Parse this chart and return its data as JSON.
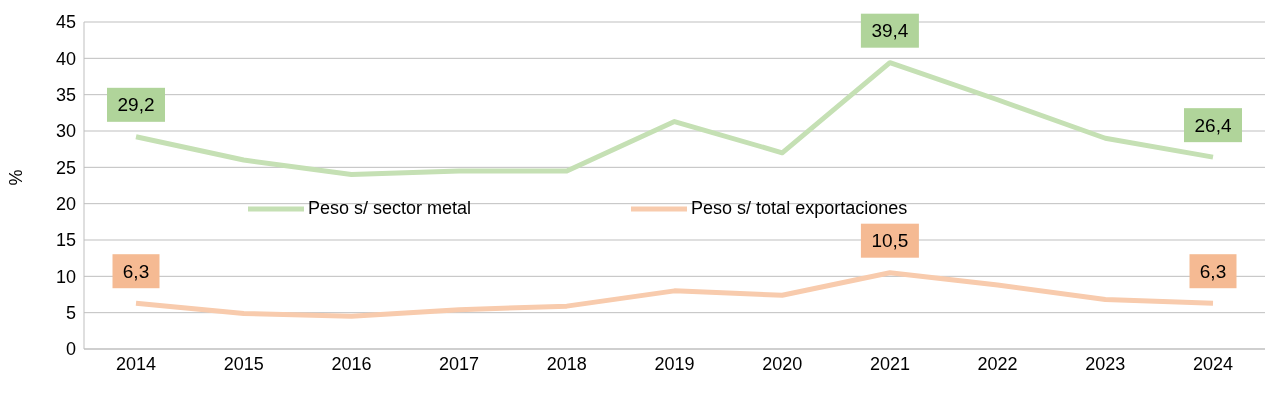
{
  "chart_data": {
    "type": "line",
    "ylabel": "%",
    "categories": [
      "2014",
      "2015",
      "2016",
      "2017",
      "2018",
      "2019",
      "2020",
      "2021",
      "2022",
      "2023",
      "2024"
    ],
    "series": [
      {
        "name": "Peso s/ sector metal",
        "color": "#c5e0b4",
        "values": [
          29.2,
          26,
          24,
          24.5,
          24.5,
          31.3,
          27,
          39.4,
          34.3,
          29,
          26.4
        ],
        "value_labels": [
          "29,2",
          null,
          null,
          null,
          null,
          null,
          null,
          "39,4",
          null,
          null,
          "26,4"
        ]
      },
      {
        "name": "Peso s/ total exportaciones",
        "color": "#f8cbad",
        "values": [
          6.3,
          4.9,
          4.5,
          5.4,
          5.9,
          8,
          7.4,
          10.5,
          8.8,
          6.8,
          6.3
        ],
        "value_labels": [
          "6,3",
          null,
          null,
          null,
          null,
          null,
          null,
          "10,5",
          null,
          null,
          "6,3"
        ]
      }
    ],
    "ylim": [
      0,
      45
    ],
    "yticks": [
      0,
      5,
      10,
      15,
      20,
      25,
      30,
      35,
      40,
      45
    ],
    "grid": "y",
    "legend": "center",
    "marker": "none",
    "line_style": "solid"
  }
}
